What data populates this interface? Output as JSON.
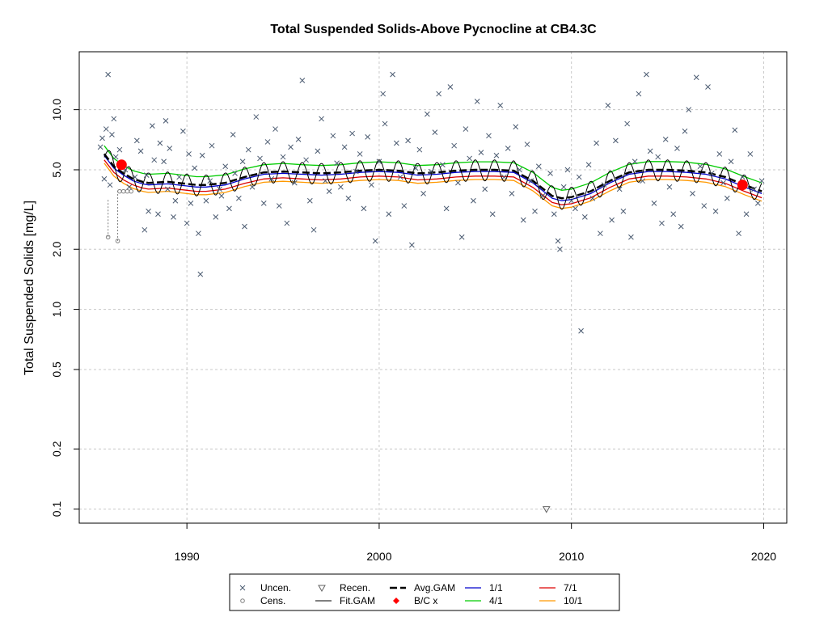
{
  "chart_data": {
    "type": "scatter",
    "title": "Total Suspended Solids-Above Pycnocline at CB4.3C",
    "ylabel": "Total Suspended Solids [mg/L]",
    "xlabel": "",
    "y_scale": "log",
    "xlim": [
      1984.4,
      2021.2
    ],
    "ylim": [
      0.085,
      19.5
    ],
    "x_ticks": [
      1990,
      2000,
      2010,
      2020
    ],
    "x_tick_labels": [
      "1990",
      "2000",
      "2010",
      "2020"
    ],
    "y_ticks": [
      0.1,
      0.2,
      0.5,
      1.0,
      2.0,
      5.0,
      10.0
    ],
    "y_tick_labels": [
      "0.1",
      "0.2",
      "0.5",
      "1.0",
      "2.0",
      "5.0",
      "10.0"
    ],
    "grid": true,
    "colors": {
      "uncensored": "#4a5a70",
      "censored": "#808080",
      "recensored": "#606060",
      "avg_gam": "#000000",
      "fit_gam": "#000000",
      "bc": "#ff0000",
      "month_1": "#0000cc",
      "month_4": "#00cc00",
      "month_7": "#dd0000",
      "month_10": "#ff9900",
      "grid": "#c8c8c8"
    },
    "legend": {
      "position": "bottom",
      "entries": [
        {
          "label": "Uncen.",
          "symbol": "x-mark"
        },
        {
          "label": "Cens.",
          "symbol": "open-circle"
        },
        {
          "label": "Recen.",
          "symbol": "down-triangle"
        },
        {
          "label": "Fit.GAM",
          "symbol": "thin-line"
        },
        {
          "label": "Avg.GAM",
          "symbol": "dashed-line"
        },
        {
          "label": "B/C x",
          "symbol": "red-diamond"
        },
        {
          "label": "1/1",
          "symbol": "blue-line"
        },
        {
          "label": "4/1",
          "symbol": "green-line"
        },
        {
          "label": "7/1",
          "symbol": "red-line"
        },
        {
          "label": "10/1",
          "symbol": "orange-line"
        }
      ]
    },
    "avg_gam": {
      "x": [
        1985.7,
        1986.2,
        1986.7,
        1987.2,
        1987.7,
        1988,
        1989,
        1990,
        1990.5,
        1991,
        1992,
        1993,
        1994,
        1995,
        1996,
        1997,
        1998,
        1999,
        2000,
        2001,
        2002,
        2003,
        2004,
        2005,
        2006,
        2007,
        2008,
        2009,
        2009.5,
        2010,
        2011,
        2012,
        2013,
        2014,
        2015,
        2016,
        2017,
        2018,
        2019,
        2019.9
      ],
      "y": [
        6.0,
        5.2,
        4.8,
        4.5,
        4.35,
        4.3,
        4.35,
        4.25,
        4.2,
        4.2,
        4.3,
        4.6,
        4.85,
        4.9,
        4.85,
        4.8,
        4.85,
        4.95,
        5.0,
        4.95,
        4.8,
        4.85,
        4.95,
        5.0,
        5.0,
        4.95,
        4.4,
        3.7,
        3.6,
        3.65,
        3.9,
        4.4,
        4.85,
        5.0,
        5.0,
        4.95,
        4.85,
        4.6,
        4.2,
        3.9
      ]
    },
    "month_1": {
      "x": [
        1985.7,
        1986.2,
        1986.7,
        1987.2,
        1987.7,
        1988,
        1989,
        1990,
        1990.5,
        1991,
        1992,
        1993,
        1994,
        1995,
        1996,
        1997,
        1998,
        1999,
        2000,
        2001,
        2002,
        2003,
        2004,
        2005,
        2006,
        2007,
        2008,
        2009,
        2009.5,
        2010,
        2011,
        2012,
        2013,
        2014,
        2015,
        2016,
        2017,
        2018,
        2019,
        2019.9
      ],
      "y": [
        5.9,
        5.1,
        4.7,
        4.4,
        4.25,
        4.2,
        4.25,
        4.15,
        4.1,
        4.1,
        4.2,
        4.5,
        4.75,
        4.8,
        4.75,
        4.7,
        4.75,
        4.85,
        4.9,
        4.85,
        4.7,
        4.75,
        4.85,
        4.9,
        4.9,
        4.85,
        4.3,
        3.6,
        3.5,
        3.55,
        3.8,
        4.3,
        4.75,
        4.9,
        4.9,
        4.85,
        4.75,
        4.5,
        4.1,
        3.8
      ]
    },
    "month_4": {
      "x": [
        1985.7,
        1986.2,
        1986.7,
        1987.2,
        1987.7,
        1988,
        1989,
        1990,
        1990.5,
        1991,
        1992,
        1993,
        1994,
        1995,
        1996,
        1997,
        1998,
        1999,
        2000,
        2001,
        2002,
        2003,
        2004,
        2005,
        2006,
        2007,
        2008,
        2009,
        2009.5,
        2010,
        2011,
        2012,
        2013,
        2014,
        2015,
        2016,
        2017,
        2018,
        2019,
        2019.9
      ],
      "y": [
        6.6,
        5.7,
        5.25,
        4.95,
        4.8,
        4.75,
        4.8,
        4.68,
        4.62,
        4.62,
        4.72,
        5.05,
        5.3,
        5.38,
        5.3,
        5.25,
        5.3,
        5.42,
        5.48,
        5.42,
        5.25,
        5.3,
        5.42,
        5.48,
        5.48,
        5.42,
        4.85,
        4.08,
        3.95,
        4.0,
        4.3,
        4.85,
        5.32,
        5.5,
        5.5,
        5.45,
        5.32,
        5.05,
        4.62,
        4.3
      ]
    },
    "month_7": {
      "x": [
        1985.7,
        1986.2,
        1986.7,
        1987.2,
        1987.7,
        1988,
        1989,
        1990,
        1990.5,
        1991,
        1992,
        1993,
        1994,
        1995,
        1996,
        1997,
        1998,
        1999,
        2000,
        2001,
        2002,
        2003,
        2004,
        2005,
        2006,
        2007,
        2008,
        2009,
        2009.5,
        2010,
        2011,
        2012,
        2013,
        2014,
        2015,
        2016,
        2017,
        2018,
        2019,
        2019.9
      ],
      "y": [
        5.6,
        4.85,
        4.45,
        4.2,
        4.05,
        4.0,
        4.05,
        3.95,
        3.9,
        3.9,
        4.0,
        4.28,
        4.5,
        4.56,
        4.5,
        4.45,
        4.5,
        4.6,
        4.65,
        4.6,
        4.45,
        4.5,
        4.6,
        4.65,
        4.65,
        4.6,
        4.08,
        3.43,
        3.34,
        3.38,
        3.62,
        4.08,
        4.5,
        4.65,
        4.65,
        4.6,
        4.5,
        4.28,
        3.9,
        3.62
      ]
    },
    "month_10": {
      "x": [
        1985.7,
        1986.2,
        1986.7,
        1987.2,
        1987.7,
        1988,
        1989,
        1990,
        1990.5,
        1991,
        1992,
        1993,
        1994,
        1995,
        1996,
        1997,
        1998,
        1999,
        2000,
        2001,
        2002,
        2003,
        2004,
        2005,
        2006,
        2007,
        2008,
        2009,
        2009.5,
        2010,
        2011,
        2012,
        2013,
        2014,
        2015,
        2016,
        2017,
        2018,
        2019,
        2019.9
      ],
      "y": [
        5.4,
        4.65,
        4.28,
        4.03,
        3.9,
        3.85,
        3.9,
        3.8,
        3.75,
        3.75,
        3.85,
        4.12,
        4.33,
        4.38,
        4.33,
        4.28,
        4.33,
        4.42,
        4.47,
        4.42,
        4.28,
        4.33,
        4.42,
        4.47,
        4.47,
        4.42,
        3.92,
        3.3,
        3.2,
        3.25,
        3.48,
        3.92,
        4.33,
        4.47,
        4.47,
        4.42,
        4.33,
        4.12,
        3.75,
        3.48
      ]
    },
    "fit_gam": {
      "description_note": "",
      "amplitude_fraction": 0.12,
      "cycles_per_year": 1
    },
    "bc_points": [
      {
        "x": 1986.6,
        "y": 5.3
      },
      {
        "x": 2018.9,
        "y": 4.2
      }
    ],
    "censored_points": [
      {
        "x": 1985.9,
        "y_low": 2.3,
        "y_high": 3.6
      },
      {
        "x": 1986.4,
        "y_low": 2.2,
        "y_high": 4.0
      },
      {
        "x": 1986.5,
        "y_low": 3.9,
        "y_high": 3.9
      },
      {
        "x": 1986.7,
        "y_low": 3.9,
        "y_high": 3.9
      },
      {
        "x": 1986.9,
        "y_low": 3.9,
        "y_high": 3.9
      },
      {
        "x": 1987.1,
        "y_low": 3.9,
        "y_high": 3.9
      }
    ],
    "recensored_points": [
      {
        "x": 2008.7,
        "y": 0.1
      }
    ],
    "uncensored_points": [
      [
        1985.5,
        6.5
      ],
      [
        1985.6,
        7.2
      ],
      [
        1985.7,
        4.5
      ],
      [
        1985.8,
        8.0
      ],
      [
        1985.9,
        15.0
      ],
      [
        1986.0,
        4.2
      ],
      [
        1986.1,
        7.5
      ],
      [
        1986.2,
        9.0
      ],
      [
        1986.3,
        5.8
      ],
      [
        1986.5,
        6.3
      ],
      [
        1986.8,
        5.0
      ],
      [
        1987.0,
        4.1
      ],
      [
        1987.3,
        4.6
      ],
      [
        1987.4,
        7.0
      ],
      [
        1987.6,
        6.2
      ],
      [
        1987.8,
        2.5
      ],
      [
        1987.9,
        4.7
      ],
      [
        1988.0,
        3.1
      ],
      [
        1988.2,
        8.3
      ],
      [
        1988.3,
        5.6
      ],
      [
        1988.5,
        3.0
      ],
      [
        1988.6,
        6.8
      ],
      [
        1988.8,
        5.5
      ],
      [
        1988.9,
        8.8
      ],
      [
        1989.0,
        4.0
      ],
      [
        1989.1,
        6.4
      ],
      [
        1989.3,
        2.9
      ],
      [
        1989.4,
        3.5
      ],
      [
        1989.6,
        4.6
      ],
      [
        1989.8,
        7.8
      ],
      [
        1990.0,
        2.7
      ],
      [
        1990.1,
        6.0
      ],
      [
        1990.2,
        3.4
      ],
      [
        1990.4,
        5.1
      ],
      [
        1990.6,
        2.4
      ],
      [
        1990.7,
        1.5
      ],
      [
        1990.8,
        5.9
      ],
      [
        1991.0,
        3.5
      ],
      [
        1991.2,
        4.4
      ],
      [
        1991.3,
        6.6
      ],
      [
        1991.5,
        2.9
      ],
      [
        1991.7,
        4.0
      ],
      [
        1991.8,
        3.7
      ],
      [
        1992.0,
        5.2
      ],
      [
        1992.2,
        3.2
      ],
      [
        1992.4,
        7.5
      ],
      [
        1992.5,
        4.8
      ],
      [
        1992.7,
        3.6
      ],
      [
        1992.9,
        5.5
      ],
      [
        1993.0,
        2.6
      ],
      [
        1993.2,
        6.3
      ],
      [
        1993.4,
        4.1
      ],
      [
        1993.6,
        9.2
      ],
      [
        1993.8,
        5.7
      ],
      [
        1994.0,
        3.4
      ],
      [
        1994.2,
        6.9
      ],
      [
        1994.4,
        4.5
      ],
      [
        1994.6,
        8.0
      ],
      [
        1994.8,
        3.3
      ],
      [
        1995.0,
        5.8
      ],
      [
        1995.2,
        2.7
      ],
      [
        1995.4,
        6.5
      ],
      [
        1995.6,
        4.3
      ],
      [
        1995.8,
        7.1
      ],
      [
        1996.0,
        14.0
      ],
      [
        1996.2,
        5.6
      ],
      [
        1996.4,
        3.5
      ],
      [
        1996.6,
        2.5
      ],
      [
        1996.8,
        6.2
      ],
      [
        1997.0,
        9.0
      ],
      [
        1997.2,
        4.4
      ],
      [
        1997.4,
        3.9
      ],
      [
        1997.6,
        7.4
      ],
      [
        1997.8,
        5.4
      ],
      [
        1998.0,
        4.1
      ],
      [
        1998.2,
        6.5
      ],
      [
        1998.4,
        3.6
      ],
      [
        1998.6,
        7.6
      ],
      [
        1998.8,
        4.9
      ],
      [
        1999.0,
        6.0
      ],
      [
        1999.2,
        3.2
      ],
      [
        1999.4,
        7.3
      ],
      [
        1999.6,
        4.2
      ],
      [
        1999.8,
        2.2
      ],
      [
        2000.0,
        5.5
      ],
      [
        2000.2,
        12.0
      ],
      [
        2000.3,
        8.5
      ],
      [
        2000.5,
        3.0
      ],
      [
        2000.7,
        15.0
      ],
      [
        2000.9,
        6.8
      ],
      [
        2001.1,
        4.6
      ],
      [
        2001.3,
        3.3
      ],
      [
        2001.5,
        7.0
      ],
      [
        2001.7,
        2.1
      ],
      [
        2001.9,
        5.1
      ],
      [
        2002.1,
        6.3
      ],
      [
        2002.3,
        3.8
      ],
      [
        2002.5,
        9.5
      ],
      [
        2002.7,
        4.9
      ],
      [
        2002.9,
        7.7
      ],
      [
        2003.1,
        12.0
      ],
      [
        2003.3,
        5.3
      ],
      [
        2003.5,
        3.2
      ],
      [
        2003.7,
        13.0
      ],
      [
        2003.9,
        6.6
      ],
      [
        2004.1,
        4.3
      ],
      [
        2004.3,
        2.3
      ],
      [
        2004.5,
        8.0
      ],
      [
        2004.7,
        5.7
      ],
      [
        2004.9,
        3.5
      ],
      [
        2005.1,
        11.0
      ],
      [
        2005.3,
        6.1
      ],
      [
        2005.5,
        4.0
      ],
      [
        2005.7,
        7.4
      ],
      [
        2005.9,
        3.0
      ],
      [
        2006.1,
        5.9
      ],
      [
        2006.3,
        10.5
      ],
      [
        2006.5,
        4.6
      ],
      [
        2006.7,
        6.4
      ],
      [
        2006.9,
        3.8
      ],
      [
        2007.1,
        8.2
      ],
      [
        2007.3,
        5.0
      ],
      [
        2007.5,
        2.8
      ],
      [
        2007.7,
        6.7
      ],
      [
        2007.9,
        4.4
      ],
      [
        2008.1,
        3.1
      ],
      [
        2008.3,
        5.2
      ],
      [
        2008.5,
        3.7
      ],
      [
        2008.9,
        4.8
      ],
      [
        2009.1,
        3.0
      ],
      [
        2009.3,
        2.2
      ],
      [
        2009.4,
        2.0
      ],
      [
        2009.6,
        4.1
      ],
      [
        2009.8,
        5.0
      ],
      [
        2010.0,
        3.5
      ],
      [
        2010.2,
        3.2
      ],
      [
        2010.4,
        4.6
      ],
      [
        2010.5,
        0.78
      ],
      [
        2010.7,
        2.9
      ],
      [
        2010.9,
        5.3
      ],
      [
        2011.1,
        3.6
      ],
      [
        2011.3,
        6.8
      ],
      [
        2011.5,
        2.4
      ],
      [
        2011.7,
        4.2
      ],
      [
        2011.9,
        10.5
      ],
      [
        2012.1,
        2.8
      ],
      [
        2012.3,
        7.0
      ],
      [
        2012.5,
        4.0
      ],
      [
        2012.7,
        3.1
      ],
      [
        2012.9,
        8.5
      ],
      [
        2013.1,
        2.3
      ],
      [
        2013.3,
        5.5
      ],
      [
        2013.5,
        12.0
      ],
      [
        2013.7,
        4.4
      ],
      [
        2013.9,
        15.0
      ],
      [
        2014.1,
        6.2
      ],
      [
        2014.3,
        3.4
      ],
      [
        2014.5,
        5.8
      ],
      [
        2014.7,
        2.7
      ],
      [
        2014.9,
        7.1
      ],
      [
        2015.1,
        4.1
      ],
      [
        2015.3,
        3.0
      ],
      [
        2015.5,
        6.4
      ],
      [
        2015.7,
        2.6
      ],
      [
        2015.9,
        7.8
      ],
      [
        2016.1,
        10.0
      ],
      [
        2016.3,
        3.8
      ],
      [
        2016.5,
        14.5
      ],
      [
        2016.7,
        5.2
      ],
      [
        2016.9,
        3.3
      ],
      [
        2017.1,
        13.0
      ],
      [
        2017.3,
        4.8
      ],
      [
        2017.5,
        3.1
      ],
      [
        2017.7,
        6.0
      ],
      [
        2017.9,
        4.3
      ],
      [
        2018.1,
        3.6
      ],
      [
        2018.3,
        5.5
      ],
      [
        2018.5,
        7.9
      ],
      [
        2018.7,
        2.4
      ],
      [
        2018.9,
        4.6
      ],
      [
        2019.1,
        3.0
      ],
      [
        2019.3,
        6.0
      ],
      [
        2019.5,
        4.0
      ],
      [
        2019.7,
        3.4
      ],
      [
        2019.9,
        4.4
      ]
    ]
  }
}
